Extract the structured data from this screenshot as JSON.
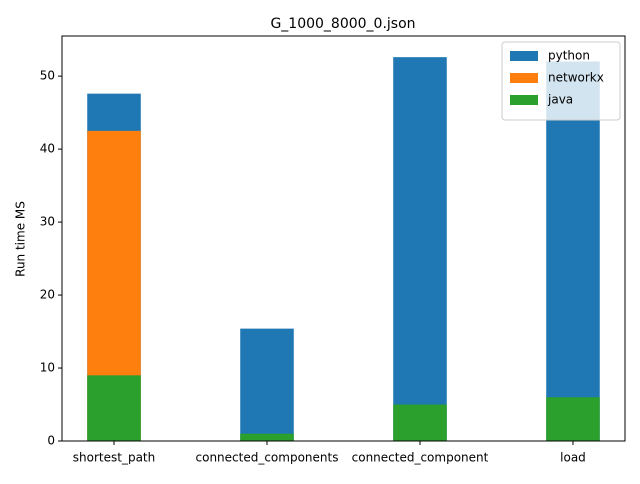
{
  "chart_data": {
    "type": "bar",
    "title": "G_1000_8000_0.json",
    "y_label": "Run time MS",
    "categories": [
      "shortest_path",
      "connected_components",
      "connected_component",
      "load"
    ],
    "series": [
      {
        "name": "python",
        "color": "#1f77b4",
        "values": [
          47.6,
          15.4,
          52.6,
          52
        ]
      },
      {
        "name": "networkx",
        "color": "#ff7f0e",
        "values": [
          42.5,
          0,
          0,
          0
        ]
      },
      {
        "name": "java",
        "color": "#2ca02c",
        "values": [
          9,
          1,
          5,
          6
        ]
      }
    ],
    "ylim": [
      0,
      55.5
    ],
    "yticks": [
      0,
      10,
      20,
      30,
      40,
      50
    ],
    "legend": "upper right"
  }
}
